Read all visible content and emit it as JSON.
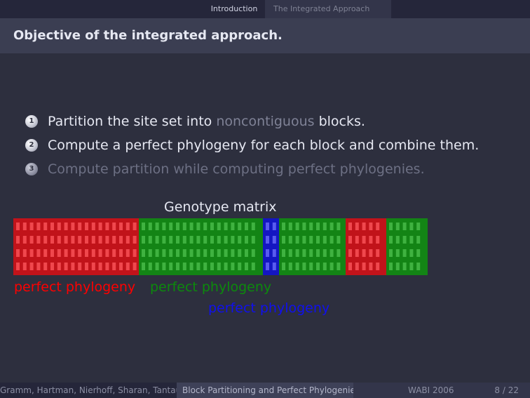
{
  "nav": {
    "tabs": [
      {
        "label": "Introduction"
      },
      {
        "label": "The Integrated Approach"
      }
    ]
  },
  "frame": {
    "title": "Objective of the integrated approach."
  },
  "items": [
    {
      "num": "1",
      "pre": "Partition the site set into ",
      "highlight": "noncontiguous",
      "post": " blocks."
    },
    {
      "num": "2",
      "text": "Compute a perfect phylogeny for each block and combine them."
    },
    {
      "num": "3",
      "text": "Compute partition while computing perfect phylogenies."
    }
  ],
  "figure": {
    "label": "Genotype matrix",
    "block_labels": {
      "red": "perfect phylogeny",
      "green": "perfect phylogeny",
      "blue": "perfect phylogeny"
    },
    "colors": {
      "red": "#c1131a",
      "green": "#138415",
      "blue": "#1416c2"
    }
  },
  "footer": {
    "authors": "Gramm, Hartman, Nierhoff, Sharan, Tantau  (T",
    "title": "Block Partitioning and Perfect Phylogenies",
    "conference": "WABI 2006",
    "page": "8 / 22"
  }
}
